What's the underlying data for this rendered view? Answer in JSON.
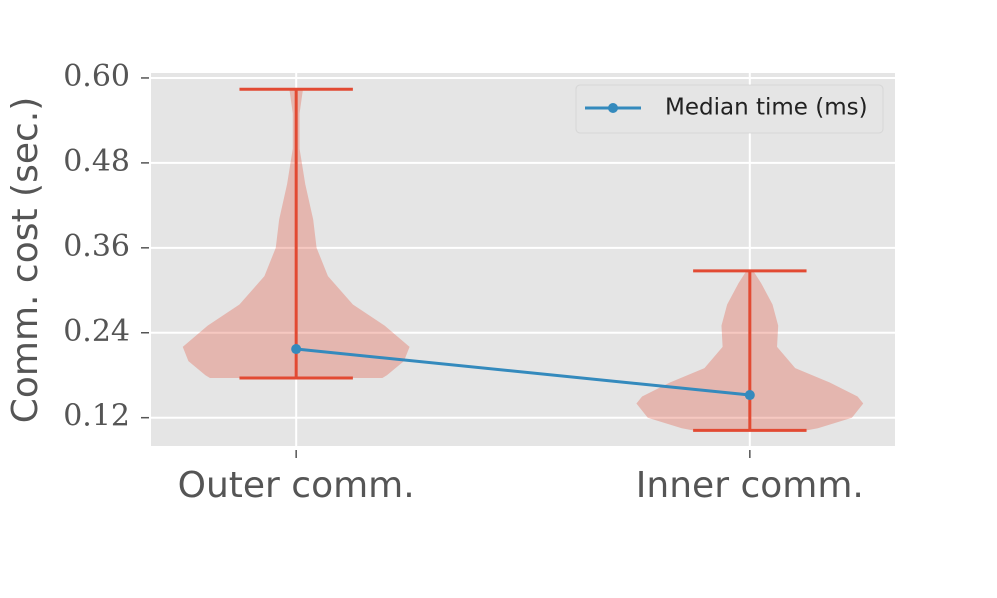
{
  "chart_data": {
    "type": "violin",
    "ylabel": "Comm. cost (sec.)",
    "categories": [
      "Outer comm.",
      "Inner comm."
    ],
    "ylim": [
      0.08,
      0.607
    ],
    "yticks": [
      0.12,
      0.24,
      0.36,
      {
        "value": 0.6,
        "label": "0.60"
      },
      0.48
    ],
    "grid": true,
    "legend": "upper right",
    "violins": [
      {
        "color": "#e24a33",
        "min": 0.176,
        "max": 0.584,
        "density_y": [
          0.584,
          0.55,
          0.5,
          0.45,
          0.4,
          0.36,
          0.32,
          0.28,
          0.25,
          0.22,
          0.2,
          0.18,
          0.176
        ],
        "density": [
          0.06,
          0.03,
          0.03,
          0.08,
          0.15,
          0.18,
          0.28,
          0.5,
          0.78,
          1.0,
          0.95,
          0.8,
          0.76
        ]
      },
      {
        "color": "#e24a33",
        "min": 0.102,
        "max": 0.3275,
        "density_y": [
          0.3275,
          0.31,
          0.28,
          0.25,
          0.22,
          0.19,
          0.17,
          0.15,
          0.14,
          0.12,
          0.105,
          0.102
        ],
        "density": [
          0.03,
          0.1,
          0.2,
          0.25,
          0.24,
          0.4,
          0.7,
          0.95,
          1.0,
          0.9,
          0.6,
          0.5
        ]
      }
    ],
    "series": [
      {
        "name": "Median time (ms)",
        "color": "#348abd",
        "values": [
          0.217,
          0.152
        ]
      }
    ]
  }
}
